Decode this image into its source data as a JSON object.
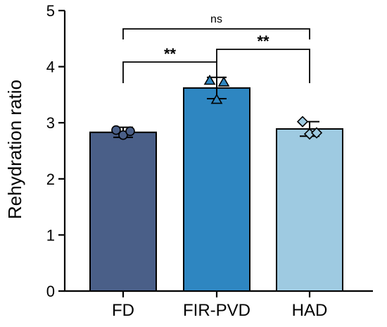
{
  "chart_data": {
    "type": "bar",
    "title": "",
    "xlabel": "",
    "ylabel": "Rehydration ratio",
    "ylim": [
      0,
      5
    ],
    "yticks": [
      "0",
      "1",
      "2",
      "3",
      "4",
      "5"
    ],
    "categories": [
      "FD",
      "FIR-PVD",
      "HAD"
    ],
    "values": [
      2.83,
      3.62,
      2.89
    ],
    "errors": [
      0.09,
      0.19,
      0.13
    ],
    "colors": [
      "#4a5f88",
      "#2e86c1",
      "#9ecae1"
    ],
    "marker_shapes": [
      "circle",
      "triangle",
      "diamond"
    ],
    "points": [
      [
        2.87,
        2.78,
        2.85
      ],
      [
        3.75,
        3.41,
        3.72
      ],
      [
        3.02,
        2.8,
        2.82
      ]
    ],
    "significance": [
      {
        "from": "FD",
        "to": "FIR-PVD",
        "label": "**"
      },
      {
        "from": "FIR-PVD",
        "to": "HAD",
        "label": "**"
      },
      {
        "from": "FD",
        "to": "HAD",
        "label": "ns"
      }
    ],
    "grid": false,
    "legend": "none"
  }
}
